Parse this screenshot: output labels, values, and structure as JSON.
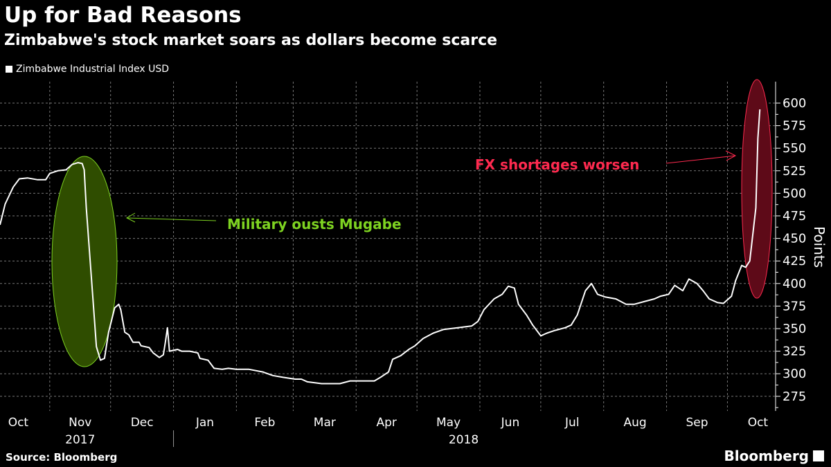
{
  "chart_data": {
    "type": "line",
    "title": "Up for Bad Reasons",
    "subtitle": "Zimbabwe's stock market soars as dollars become scarce",
    "ylabel": "Points",
    "xlabel": "",
    "ylim": [
      262,
      626
    ],
    "yticks": [
      275,
      300,
      325,
      350,
      375,
      400,
      425,
      450,
      475,
      500,
      525,
      550,
      575,
      600
    ],
    "x_unit": "days since 2017-10-01",
    "xlim": [
      6,
      382
    ],
    "months": [
      {
        "label": "Oct",
        "start": 0
      },
      {
        "label": "Nov",
        "start": 31
      },
      {
        "label": "Dec",
        "start": 61
      },
      {
        "label": "Jan",
        "start": 92
      },
      {
        "label": "Feb",
        "start": 123
      },
      {
        "label": "Mar",
        "start": 151
      },
      {
        "label": "Apr",
        "start": 182
      },
      {
        "label": "May",
        "start": 212
      },
      {
        "label": "Jun",
        "start": 243
      },
      {
        "label": "Jul",
        "start": 273
      },
      {
        "label": "Aug",
        "start": 304
      },
      {
        "label": "Sep",
        "start": 335
      },
      {
        "label": "Oct",
        "start": 365
      }
    ],
    "years": [
      {
        "label": "2017",
        "center": 46
      },
      {
        "label": "2018",
        "center": 235
      }
    ],
    "grid": true,
    "legend": {
      "position": "top-left",
      "entries": [
        "Zimbabwe Industrial Index USD"
      ]
    },
    "series": [
      {
        "name": "Zimbabwe Industrial Index USD",
        "color": "#ffffff",
        "points": [
          [
            6.5,
            465
          ],
          [
            9,
            488
          ],
          [
            13,
            507
          ],
          [
            16,
            516
          ],
          [
            20,
            517
          ],
          [
            25,
            515
          ],
          [
            29,
            515
          ],
          [
            31,
            522
          ],
          [
            35,
            525
          ],
          [
            39,
            526
          ],
          [
            42,
            532
          ],
          [
            45,
            534
          ],
          [
            47,
            533
          ],
          [
            48,
            526
          ],
          [
            49,
            484
          ],
          [
            51,
            423
          ],
          [
            53,
            361
          ],
          [
            54,
            330
          ],
          [
            56,
            315
          ],
          [
            58,
            317
          ],
          [
            60,
            346
          ],
          [
            63,
            373
          ],
          [
            65,
            377
          ],
          [
            66,
            371
          ],
          [
            68,
            346
          ],
          [
            70,
            343
          ],
          [
            72,
            335
          ],
          [
            75,
            335
          ],
          [
            76,
            331
          ],
          [
            80,
            329
          ],
          [
            82,
            323
          ],
          [
            85,
            318
          ],
          [
            87,
            321
          ],
          [
            88,
            335
          ],
          [
            89,
            351
          ],
          [
            90,
            325
          ],
          [
            94,
            327
          ],
          [
            96,
            325
          ],
          [
            100,
            325
          ],
          [
            104,
            323
          ],
          [
            105,
            317
          ],
          [
            109,
            315
          ],
          [
            112,
            306
          ],
          [
            116,
            305
          ],
          [
            119,
            306
          ],
          [
            123,
            305
          ],
          [
            129,
            305
          ],
          [
            136,
            302
          ],
          [
            141,
            298
          ],
          [
            146,
            296
          ],
          [
            152,
            294
          ],
          [
            155,
            294
          ],
          [
            158,
            291
          ],
          [
            165,
            289
          ],
          [
            174,
            289
          ],
          [
            179,
            292
          ],
          [
            191,
            292
          ],
          [
            194,
            296
          ],
          [
            198,
            302
          ],
          [
            200,
            316
          ],
          [
            204,
            320
          ],
          [
            208,
            327
          ],
          [
            211,
            331
          ],
          [
            215,
            339
          ],
          [
            220,
            345
          ],
          [
            225,
            349
          ],
          [
            232,
            351
          ],
          [
            239,
            353
          ],
          [
            242,
            358
          ],
          [
            245,
            371
          ],
          [
            250,
            383
          ],
          [
            254,
            388
          ],
          [
            257,
            397
          ],
          [
            260,
            395
          ],
          [
            262,
            377
          ],
          [
            266,
            365
          ],
          [
            269,
            354
          ],
          [
            273,
            342
          ],
          [
            276,
            345
          ],
          [
            280,
            348
          ],
          [
            285,
            351
          ],
          [
            288,
            354
          ],
          [
            291,
            365
          ],
          [
            295,
            392
          ],
          [
            298,
            400
          ],
          [
            301,
            388
          ],
          [
            305,
            385
          ],
          [
            310,
            383
          ],
          [
            315,
            377
          ],
          [
            319,
            377
          ],
          [
            324,
            380
          ],
          [
            329,
            383
          ],
          [
            332,
            386
          ],
          [
            336,
            388
          ],
          [
            339,
            398
          ],
          [
            343,
            392
          ],
          [
            346,
            405
          ],
          [
            350,
            400
          ],
          [
            353,
            392
          ],
          [
            356,
            383
          ],
          [
            360,
            379
          ],
          [
            363,
            378
          ],
          [
            367,
            386
          ],
          [
            369,
            403
          ],
          [
            372,
            420
          ],
          [
            374,
            418
          ],
          [
            376,
            425
          ],
          [
            379,
            484
          ],
          [
            380,
            561
          ],
          [
            381,
            593
          ]
        ]
      }
    ],
    "annotations": [
      {
        "text": "Military ousts Mugabe",
        "color": "#7ed321"
      },
      {
        "text": "FX shortages worsen",
        "color": "#ff2a4f"
      }
    ]
  },
  "footer": {
    "source": "Source: Bloomberg",
    "brand": "Bloomberg"
  }
}
